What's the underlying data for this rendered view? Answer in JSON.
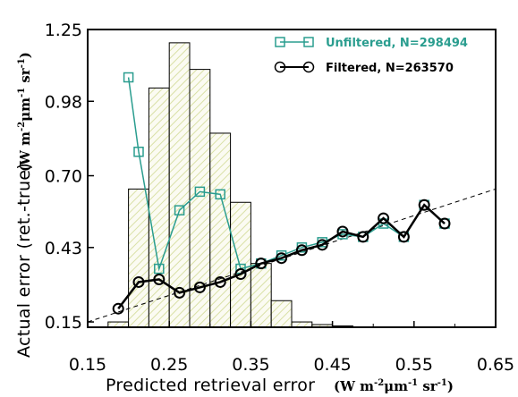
{
  "chart_data": {
    "type": "line",
    "xlabel": "Predicted retrieval error",
    "xunit": "(W m-2 μm-1 sr-1)",
    "ylabel": "Actual error (ret.-true)",
    "yunit": "(W m-2 μm-1 sr-1)",
    "xlim": [
      0.15,
      0.65
    ],
    "ylim": [
      0.13,
      1.25
    ],
    "xticks": [
      "0.15",
      "0.25",
      "0.35",
      "0.45",
      "0.55",
      "0.65"
    ],
    "xtick_values": [
      0.15,
      0.25,
      0.35,
      0.45,
      0.55,
      0.65
    ],
    "yticks": [
      "0.15",
      "0.43",
      "0.70",
      "0.98",
      "1.25"
    ],
    "ytick_values": [
      0.15,
      0.43,
      0.7,
      0.98,
      1.25
    ],
    "series": [
      {
        "name": "Unfiltered, N=298494",
        "color": "#2a9d8f",
        "marker": "square",
        "x": [
          0.2,
          0.2125,
          0.2375,
          0.2625,
          0.2875,
          0.3125,
          0.3375,
          0.3625,
          0.3875,
          0.4125,
          0.4375,
          0.4625,
          0.4875,
          0.5125,
          0.5375,
          0.5625,
          0.5875
        ],
        "y": [
          1.07,
          0.79,
          0.35,
          0.57,
          0.64,
          0.63,
          0.35,
          0.37,
          0.4,
          0.43,
          0.45,
          0.48,
          0.47,
          0.52,
          0.47,
          0.59,
          0.52
        ]
      },
      {
        "name": "Filtered, N=263570",
        "color": "#000000",
        "marker": "circle",
        "x": [
          0.1875,
          0.2125,
          0.2375,
          0.2625,
          0.2875,
          0.3125,
          0.3375,
          0.3625,
          0.3875,
          0.4125,
          0.4375,
          0.4625,
          0.4875,
          0.5125,
          0.5375,
          0.5625,
          0.5875
        ],
        "y": [
          0.2,
          0.3,
          0.31,
          0.26,
          0.28,
          0.3,
          0.33,
          0.37,
          0.39,
          0.42,
          0.44,
          0.49,
          0.47,
          0.54,
          0.47,
          0.59,
          0.52
        ]
      }
    ],
    "reference_line": {
      "style": "dashed",
      "x": [
        0.15,
        0.65
      ],
      "y": [
        0.15,
        0.65
      ]
    },
    "histogram": {
      "bin_edges": [
        0.175,
        0.2,
        0.225,
        0.25,
        0.275,
        0.3,
        0.325,
        0.35,
        0.375,
        0.4,
        0.425,
        0.45,
        0.475
      ],
      "heights": [
        0.15,
        0.65,
        1.03,
        1.2,
        1.1,
        0.86,
        0.6,
        0.37,
        0.23,
        0.15,
        0.14,
        0.135
      ],
      "fill": "hatched",
      "hatch_color": "#d9e0a6"
    },
    "legend": {
      "location": "top-right"
    },
    "grid": false
  }
}
